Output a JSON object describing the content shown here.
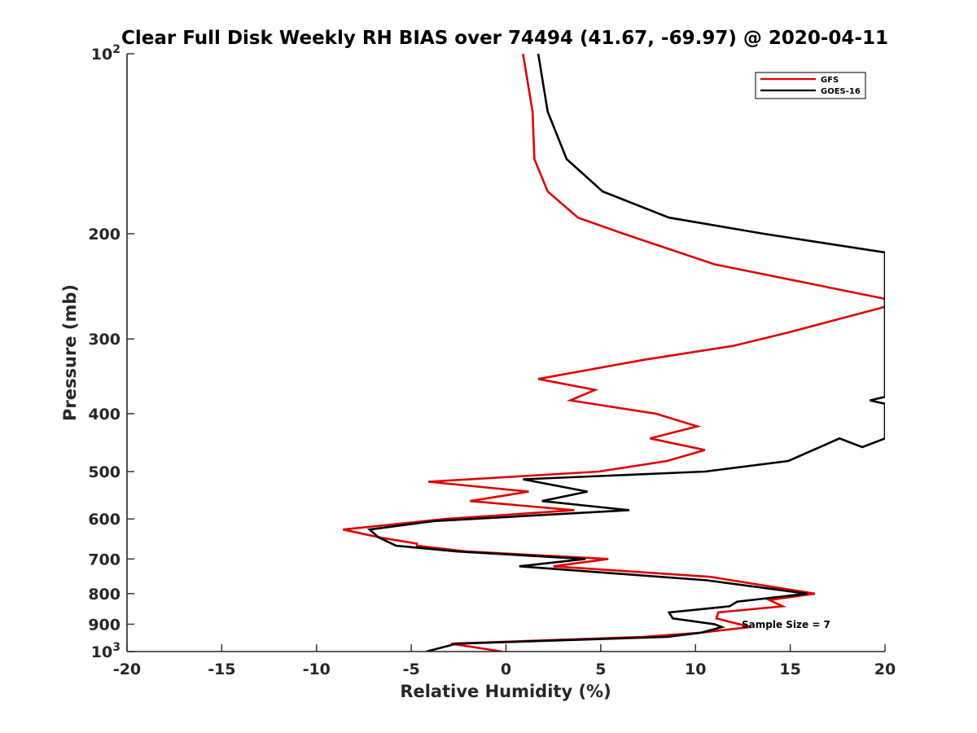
{
  "chart_data": {
    "type": "line",
    "title": "Clear Full Disk Weekly RH BIAS over 74494 (41.67, -69.97) @ 2020-04-11",
    "xlabel": "Relative Humidity (%)",
    "ylabel": "Pressure (mb)",
    "xlim": [
      -20,
      20
    ],
    "ylim": [
      100,
      1000
    ],
    "yscale": "log",
    "y_reversed": true,
    "grid": false,
    "legend_position": "top-right",
    "x_ticks": [
      {
        "value": -20,
        "label": "-20"
      },
      {
        "value": -15,
        "label": "-15"
      },
      {
        "value": -10,
        "label": "-10"
      },
      {
        "value": -5,
        "label": "-5"
      },
      {
        "value": 0,
        "label": "0"
      },
      {
        "value": 5,
        "label": "5"
      },
      {
        "value": 10,
        "label": "10"
      },
      {
        "value": 15,
        "label": "15"
      },
      {
        "value": 20,
        "label": "20"
      }
    ],
    "y_ticks": [
      {
        "value": 100,
        "label": "10",
        "sup": "2"
      },
      {
        "value": 200,
        "label": "200"
      },
      {
        "value": 300,
        "label": "300"
      },
      {
        "value": 400,
        "label": "400"
      },
      {
        "value": 500,
        "label": "500"
      },
      {
        "value": 600,
        "label": "600"
      },
      {
        "value": 700,
        "label": "700"
      },
      {
        "value": 800,
        "label": "800"
      },
      {
        "value": 900,
        "label": "900"
      },
      {
        "value": 1000,
        "label": "10",
        "sup": "3"
      }
    ],
    "series": [
      {
        "name": "GFS",
        "color": "#e00000",
        "points": [
          [
            0.9,
            100
          ],
          [
            1.4,
            125
          ],
          [
            1.5,
            150
          ],
          [
            2.2,
            170
          ],
          [
            3.8,
            188
          ],
          [
            6.2,
            200
          ],
          [
            11.0,
            225
          ],
          [
            20.0,
            257
          ],
          [
            20.0,
            265
          ],
          [
            15.0,
            292
          ],
          [
            12.0,
            308
          ],
          [
            7.3,
            325
          ],
          [
            1.7,
            350
          ],
          [
            4.7,
            365
          ],
          [
            3.4,
            380
          ],
          [
            7.9,
            400
          ],
          [
            10.1,
            420
          ],
          [
            7.6,
            440
          ],
          [
            10.5,
            460
          ],
          [
            8.5,
            480
          ],
          [
            4.9,
            500
          ],
          [
            -4.1,
            520
          ],
          [
            1.2,
            540
          ],
          [
            -1.9,
            560
          ],
          [
            3.6,
            580
          ],
          [
            -3.2,
            600
          ],
          [
            -8.6,
            625
          ],
          [
            -6.6,
            645
          ],
          [
            -4.7,
            660
          ],
          [
            -4.7,
            665
          ],
          [
            -2.1,
            680
          ],
          [
            5.4,
            700
          ],
          [
            2.5,
            720
          ],
          [
            10.8,
            750
          ],
          [
            16.3,
            800
          ],
          [
            13.9,
            820
          ],
          [
            14.6,
            840
          ],
          [
            11.2,
            860
          ],
          [
            11.1,
            880
          ],
          [
            12.9,
            910
          ],
          [
            10.2,
            930
          ],
          [
            7.2,
            945
          ],
          [
            -2.9,
            970
          ],
          [
            -0.2,
            1000
          ]
        ]
      },
      {
        "name": "GOES-16",
        "color": "#000000",
        "points": [
          [
            1.7,
            100
          ],
          [
            2.2,
            125
          ],
          [
            3.2,
            150
          ],
          [
            5.1,
            170
          ],
          [
            8.6,
            188
          ],
          [
            13.6,
            200
          ],
          [
            20.0,
            215
          ],
          [
            20.0,
            340
          ],
          [
            20.0,
            375
          ],
          [
            19.2,
            380
          ],
          [
            20.0,
            385
          ],
          [
            20.0,
            440
          ],
          [
            18.8,
            455
          ],
          [
            17.6,
            440
          ],
          [
            14.9,
            480
          ],
          [
            10.5,
            500
          ],
          [
            0.9,
            515
          ],
          [
            4.3,
            540
          ],
          [
            1.9,
            560
          ],
          [
            6.5,
            580
          ],
          [
            -3.8,
            605
          ],
          [
            -7.2,
            625
          ],
          [
            -6.7,
            645
          ],
          [
            -5.8,
            665
          ],
          [
            -2.6,
            680
          ],
          [
            4.2,
            700
          ],
          [
            0.7,
            720
          ],
          [
            10.6,
            760
          ],
          [
            15.9,
            800
          ],
          [
            12.2,
            825
          ],
          [
            11.8,
            840
          ],
          [
            8.6,
            860
          ],
          [
            8.8,
            880
          ],
          [
            11.0,
            900
          ],
          [
            11.4,
            910
          ],
          [
            10.3,
            930
          ],
          [
            8.5,
            945
          ],
          [
            -2.6,
            970
          ],
          [
            -4.2,
            1000
          ]
        ]
      }
    ],
    "legend": [
      {
        "name": "GFS",
        "color": "#e00000"
      },
      {
        "name": "GOES-16",
        "color": "#000000"
      }
    ],
    "annotation": "Sample Size = 7"
  }
}
